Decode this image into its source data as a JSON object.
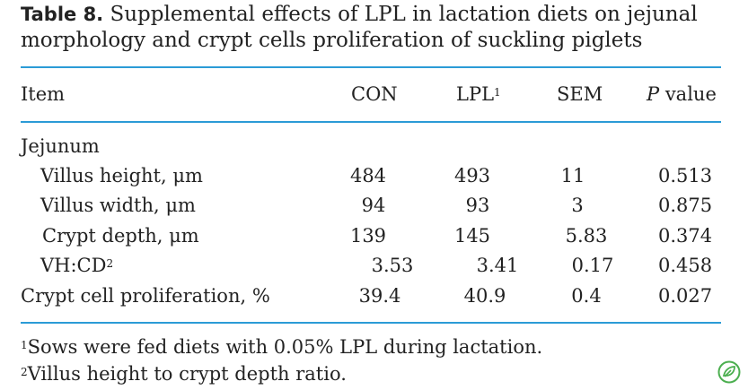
{
  "caption": {
    "label": "Table 8.",
    "text": "Supplemental effects of LPL in lactation diets on jejunal morphology and crypt cells proliferation of suckling piglets"
  },
  "table": {
    "headers": {
      "item": "Item",
      "con": "CON",
      "lpl": "LPL",
      "lpl_sup": "1",
      "sem": "SEM",
      "p_italic": "P",
      "p_rest": " value"
    },
    "section": "Jejunum",
    "rows": [
      {
        "item": "Villus height, μm",
        "sup": "",
        "con": "484",
        "lpl": "493",
        "sem": "11",
        "p": "0.513"
      },
      {
        "item": "Villus width, μm",
        "sup": "",
        "con": "94",
        "lpl": "93",
        "sem": "3",
        "p": "0.875"
      },
      {
        "item": "Crypt depth, μm",
        "sup": "",
        "con": "139",
        "lpl": "145",
        "sem": "5.83",
        "p": "0.374"
      },
      {
        "item": "VH:CD",
        "sup": "2",
        "con": "3.53",
        "lpl": "3.41",
        "sem": "0.17",
        "p": "0.458"
      },
      {
        "item": "Crypt cell proliferation, %",
        "sup": "",
        "con": "39.4",
        "lpl": "40.9",
        "sem": "0.4",
        "p": "0.027"
      }
    ]
  },
  "footnotes": [
    {
      "mark": "1",
      "text": "Sows were fed diets with 0.05% LPL during lactation."
    },
    {
      "mark": "2",
      "text": "Villus height to crypt depth ratio."
    }
  ],
  "colors": {
    "rule": "#2b9bd6",
    "logo": "#4caf50"
  },
  "icons": {
    "corner_logo": "leaf-logo-icon"
  }
}
